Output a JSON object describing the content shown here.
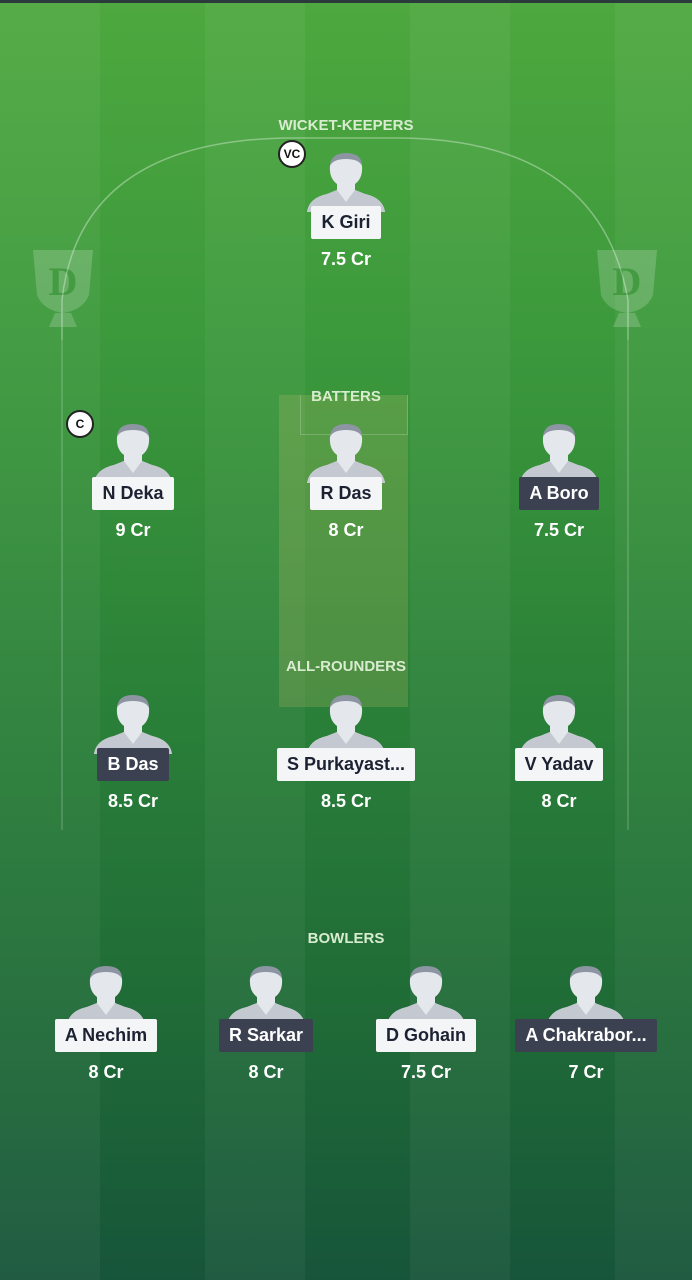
{
  "sections": {
    "wk": "WICKET-KEEPERS",
    "bat": "BATTERS",
    "ar": "ALL-ROUNDERS",
    "bowl": "BOWLERS"
  },
  "badges": {
    "captain": "C",
    "vice_captain": "VC"
  },
  "players": [
    {
      "name": "K Giri",
      "price": "7.5 Cr",
      "role": "wk",
      "style": "light"
    },
    {
      "name": "N Deka",
      "price": "9 Cr",
      "role": "bat",
      "style": "light"
    },
    {
      "name": "R Das",
      "price": "8 Cr",
      "role": "bat",
      "style": "light"
    },
    {
      "name": "A Boro",
      "price": "7.5 Cr",
      "role": "bat",
      "style": "dark"
    },
    {
      "name": "B Das",
      "price": "8.5 Cr",
      "role": "ar",
      "style": "dark"
    },
    {
      "name": "S Purkayast...",
      "price": "8.5 Cr",
      "role": "ar",
      "style": "light"
    },
    {
      "name": "V Yadav",
      "price": "8 Cr",
      "role": "ar",
      "style": "light"
    },
    {
      "name": "A Nechim",
      "price": "8 Cr",
      "role": "bowl",
      "style": "light"
    },
    {
      "name": "R Sarkar",
      "price": "8 Cr",
      "role": "bowl",
      "style": "dark"
    },
    {
      "name": "D Gohain",
      "price": "7.5 Cr",
      "role": "bowl",
      "style": "light"
    },
    {
      "name": "A Chakrabor...",
      "price": "7 Cr",
      "role": "bowl",
      "style": "dark"
    }
  ],
  "colors": {
    "light_label": "#f4f5f7",
    "dark_label": "#3b4150",
    "section_text": "#d9ecd0"
  }
}
